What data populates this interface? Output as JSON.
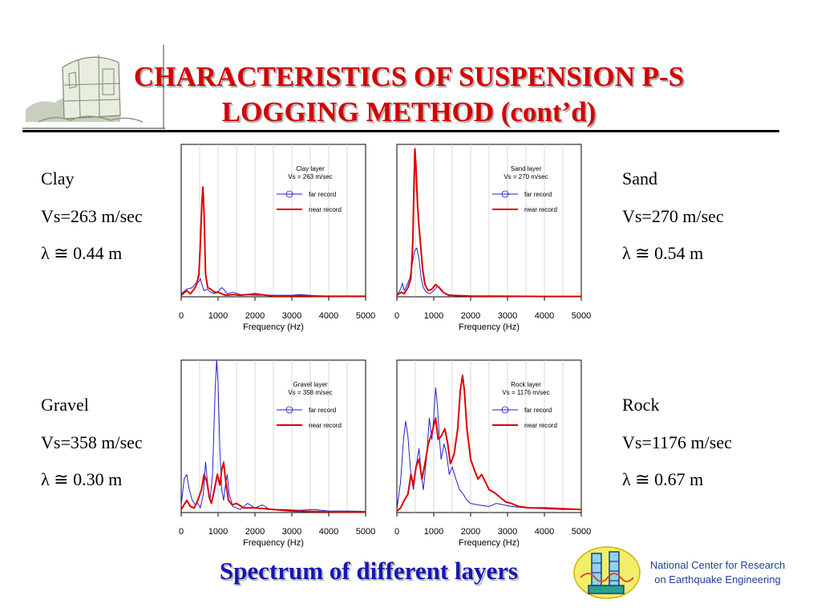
{
  "slide": {
    "title_line1": "CHARACTERISTICS OF SUSPENSION P-S",
    "title_line2": "LOGGING METHOD (cont’d)",
    "caption": "Spectrum of different layers",
    "org_line1": "National Center for Research",
    "org_line2": "on Earthquake Engineering",
    "title_color": "#d40000",
    "caption_color": "#1616b4"
  },
  "layers": [
    {
      "name": "Clay",
      "vs": "Vs=263 m/sec",
      "lambda": "λ ≅ 0.44 m"
    },
    {
      "name": "Sand",
      "vs": "Vs=270 m/sec",
      "lambda": "λ ≅ 0.54 m"
    },
    {
      "name": "Gravel",
      "vs": "Vs=358 m/sec",
      "lambda": "λ ≅ 0.30 m"
    },
    {
      "name": "Rock",
      "vs": "Vs=1176 m/sec",
      "lambda": "λ ≅ 0.67 m"
    }
  ],
  "chart_data": [
    {
      "type": "line",
      "legend_title_1": "Clay layer",
      "legend_title_2": "Vs = 263 m/sec",
      "xlabel": "Frequency (Hz)",
      "xticks": [
        "0",
        "1000",
        "2000",
        "3000",
        "4000",
        "5000"
      ],
      "xlim": [
        0,
        5000
      ],
      "ylim": [
        0,
        1
      ],
      "grid": true,
      "legend_position": "top-right",
      "series": [
        {
          "name": "far record",
          "color": "#2222cc",
          "points": [
            [
              0,
              0.02
            ],
            [
              150,
              0.05
            ],
            [
              300,
              0.06
            ],
            [
              400,
              0.09
            ],
            [
              480,
              0.1
            ],
            [
              520,
              0.12
            ],
            [
              560,
              0.08
            ],
            [
              620,
              0.04
            ],
            [
              700,
              0.05
            ],
            [
              800,
              0.03
            ],
            [
              900,
              0.02
            ],
            [
              1000,
              0.03
            ],
            [
              1050,
              0.05
            ],
            [
              1100,
              0.06
            ],
            [
              1150,
              0.05
            ],
            [
              1250,
              0.02
            ],
            [
              1400,
              0.03
            ],
            [
              1600,
              0.015
            ],
            [
              2000,
              0.01
            ],
            [
              2500,
              0.01
            ],
            [
              3000,
              0.01
            ],
            [
              3200,
              0.015
            ],
            [
              3600,
              0.008
            ],
            [
              4000,
              0.005
            ],
            [
              4500,
              0.003
            ],
            [
              5000,
              0.003
            ]
          ]
        },
        {
          "name": "near record",
          "color": "#dd0000",
          "points": [
            [
              0,
              0.01
            ],
            [
              150,
              0.04
            ],
            [
              250,
              0.02
            ],
            [
              350,
              0.05
            ],
            [
              420,
              0.08
            ],
            [
              480,
              0.15
            ],
            [
              520,
              0.35
            ],
            [
              560,
              0.62
            ],
            [
              590,
              0.72
            ],
            [
              620,
              0.55
            ],
            [
              660,
              0.15
            ],
            [
              720,
              0.06
            ],
            [
              800,
              0.05
            ],
            [
              900,
              0.03
            ],
            [
              1000,
              0.03
            ],
            [
              1200,
              0.01
            ],
            [
              1400,
              0.015
            ],
            [
              1600,
              0.01
            ],
            [
              1800,
              0.015
            ],
            [
              2000,
              0.02
            ],
            [
              2300,
              0.01
            ],
            [
              2600,
              0.005
            ],
            [
              3000,
              0.005
            ],
            [
              3200,
              0.008
            ],
            [
              3600,
              0.004
            ],
            [
              4000,
              0.003
            ],
            [
              5000,
              0.003
            ]
          ]
        }
      ]
    },
    {
      "type": "line",
      "legend_title_1": "Sand layer",
      "legend_title_2": "Vs = 270 m/sec",
      "xlabel": "Frequency (Hz)",
      "xticks": [
        "0",
        "1000",
        "2000",
        "3000",
        "4000",
        "5000"
      ],
      "xlim": [
        0,
        5000
      ],
      "ylim": [
        0,
        1
      ],
      "grid": true,
      "legend_position": "top-right",
      "series": [
        {
          "name": "far record",
          "color": "#2222cc",
          "points": [
            [
              0,
              0.01
            ],
            [
              100,
              0.05
            ],
            [
              150,
              0.09
            ],
            [
              200,
              0.04
            ],
            [
              280,
              0.08
            ],
            [
              350,
              0.12
            ],
            [
              420,
              0.22
            ],
            [
              480,
              0.3
            ],
            [
              540,
              0.32
            ],
            [
              600,
              0.25
            ],
            [
              660,
              0.12
            ],
            [
              720,
              0.06
            ],
            [
              800,
              0.03
            ],
            [
              900,
              0.02
            ],
            [
              1000,
              0.04
            ],
            [
              1100,
              0.07
            ],
            [
              1200,
              0.05
            ],
            [
              1300,
              0.02
            ],
            [
              1500,
              0.01
            ],
            [
              2000,
              0.005
            ],
            [
              3000,
              0.003
            ],
            [
              4000,
              0.002
            ],
            [
              5000,
              0.002
            ]
          ]
        },
        {
          "name": "near record",
          "color": "#dd0000",
          "points": [
            [
              0,
              0.01
            ],
            [
              120,
              0.03
            ],
            [
              200,
              0.02
            ],
            [
              300,
              0.06
            ],
            [
              380,
              0.12
            ],
            [
              430,
              0.35
            ],
            [
              460,
              0.7
            ],
            [
              490,
              0.97
            ],
            [
              520,
              0.85
            ],
            [
              560,
              0.6
            ],
            [
              600,
              0.46
            ],
            [
              650,
              0.32
            ],
            [
              700,
              0.18
            ],
            [
              760,
              0.08
            ],
            [
              850,
              0.04
            ],
            [
              950,
              0.05
            ],
            [
              1050,
              0.08
            ],
            [
              1150,
              0.06
            ],
            [
              1250,
              0.03
            ],
            [
              1400,
              0.01
            ],
            [
              2000,
              0.005
            ],
            [
              3000,
              0.003
            ],
            [
              4000,
              0.002
            ],
            [
              5000,
              0.002
            ]
          ]
        }
      ]
    },
    {
      "type": "line",
      "legend_title_1": "Gravel layer",
      "legend_title_2": "Vs = 358 m/sec",
      "xlabel": "Frequency (Hz)",
      "xticks": [
        "0",
        "1000",
        "2000",
        "3000",
        "4000",
        "5000"
      ],
      "xlim": [
        0,
        5000
      ],
      "ylim": [
        0,
        1
      ],
      "grid": true,
      "legend_position": "top-right",
      "series": [
        {
          "name": "far record",
          "color": "#2222cc",
          "points": [
            [
              0,
              0.05
            ],
            [
              80,
              0.22
            ],
            [
              150,
              0.25
            ],
            [
              220,
              0.15
            ],
            [
              300,
              0.08
            ],
            [
              380,
              0.05
            ],
            [
              450,
              0.06
            ],
            [
              520,
              0.03
            ],
            [
              600,
              0.12
            ],
            [
              660,
              0.33
            ],
            [
              720,
              0.18
            ],
            [
              780,
              0.08
            ],
            [
              850,
              0.25
            ],
            [
              920,
              0.8
            ],
            [
              960,
              1.0
            ],
            [
              1000,
              0.85
            ],
            [
              1050,
              0.4
            ],
            [
              1100,
              0.15
            ],
            [
              1150,
              0.08
            ],
            [
              1200,
              0.18
            ],
            [
              1250,
              0.25
            ],
            [
              1300,
              0.12
            ],
            [
              1400,
              0.04
            ],
            [
              1600,
              0.02
            ],
            [
              1800,
              0.06
            ],
            [
              2000,
              0.03
            ],
            [
              2200,
              0.05
            ],
            [
              2400,
              0.02
            ],
            [
              2800,
              0.02
            ],
            [
              3200,
              0.015
            ],
            [
              3600,
              0.02
            ],
            [
              4000,
              0.01
            ],
            [
              4500,
              0.01
            ],
            [
              5000,
              0.008
            ]
          ]
        },
        {
          "name": "near record",
          "color": "#dd0000",
          "points": [
            [
              0,
              0.02
            ],
            [
              150,
              0.08
            ],
            [
              250,
              0.04
            ],
            [
              350,
              0.03
            ],
            [
              450,
              0.08
            ],
            [
              550,
              0.15
            ],
            [
              620,
              0.25
            ],
            [
              700,
              0.2
            ],
            [
              760,
              0.1
            ],
            [
              820,
              0.06
            ],
            [
              900,
              0.15
            ],
            [
              980,
              0.25
            ],
            [
              1050,
              0.18
            ],
            [
              1100,
              0.28
            ],
            [
              1150,
              0.33
            ],
            [
              1200,
              0.22
            ],
            [
              1280,
              0.08
            ],
            [
              1380,
              0.05
            ],
            [
              1500,
              0.06
            ],
            [
              1700,
              0.03
            ],
            [
              2000,
              0.03
            ],
            [
              2500,
              0.02
            ],
            [
              3000,
              0.01
            ],
            [
              4000,
              0.005
            ],
            [
              5000,
              0.004
            ]
          ]
        }
      ]
    },
    {
      "type": "line",
      "legend_title_1": "Rock layer",
      "legend_title_2": "Vs = 1176 m/sec",
      "xlabel": "Frequency (Hz)",
      "xticks": [
        "0",
        "1000",
        "2000",
        "3000",
        "4000",
        "5000"
      ],
      "xlim": [
        0,
        5000
      ],
      "ylim": [
        0,
        1
      ],
      "grid": true,
      "legend_position": "top-right",
      "series": [
        {
          "name": "far record",
          "color": "#2222cc",
          "points": [
            [
              0,
              0.02
            ],
            [
              100,
              0.2
            ],
            [
              180,
              0.48
            ],
            [
              240,
              0.6
            ],
            [
              300,
              0.5
            ],
            [
              380,
              0.25
            ],
            [
              450,
              0.15
            ],
            [
              520,
              0.3
            ],
            [
              600,
              0.42
            ],
            [
              660,
              0.25
            ],
            [
              720,
              0.15
            ],
            [
              800,
              0.35
            ],
            [
              880,
              0.62
            ],
            [
              950,
              0.48
            ],
            [
              1000,
              0.62
            ],
            [
              1050,
              0.82
            ],
            [
              1100,
              0.7
            ],
            [
              1150,
              0.5
            ],
            [
              1200,
              0.35
            ],
            [
              1280,
              0.45
            ],
            [
              1350,
              0.38
            ],
            [
              1420,
              0.25
            ],
            [
              1500,
              0.3
            ],
            [
              1600,
              0.22
            ],
            [
              1700,
              0.15
            ],
            [
              1800,
              0.12
            ],
            [
              1900,
              0.08
            ],
            [
              2000,
              0.06
            ],
            [
              2200,
              0.05
            ],
            [
              2500,
              0.04
            ],
            [
              2700,
              0.06
            ],
            [
              2900,
              0.05
            ],
            [
              3100,
              0.04
            ],
            [
              3500,
              0.03
            ],
            [
              4000,
              0.025
            ],
            [
              4500,
              0.02
            ],
            [
              5000,
              0.02
            ]
          ]
        },
        {
          "name": "near record",
          "color": "#dd0000",
          "points": [
            [
              0,
              0.01
            ],
            [
              100,
              0.03
            ],
            [
              200,
              0.08
            ],
            [
              300,
              0.12
            ],
            [
              380,
              0.25
            ],
            [
              450,
              0.18
            ],
            [
              520,
              0.3
            ],
            [
              600,
              0.35
            ],
            [
              680,
              0.22
            ],
            [
              760,
              0.32
            ],
            [
              850,
              0.45
            ],
            [
              950,
              0.52
            ],
            [
              1050,
              0.62
            ],
            [
              1120,
              0.48
            ],
            [
              1200,
              0.5
            ],
            [
              1300,
              0.55
            ],
            [
              1380,
              0.45
            ],
            [
              1450,
              0.32
            ],
            [
              1550,
              0.38
            ],
            [
              1650,
              0.55
            ],
            [
              1720,
              0.8
            ],
            [
              1780,
              0.9
            ],
            [
              1830,
              0.8
            ],
            [
              1900,
              0.55
            ],
            [
              2000,
              0.35
            ],
            [
              2100,
              0.28
            ],
            [
              2200,
              0.22
            ],
            [
              2300,
              0.25
            ],
            [
              2400,
              0.2
            ],
            [
              2500,
              0.15
            ],
            [
              2650,
              0.13
            ],
            [
              2800,
              0.1
            ],
            [
              2950,
              0.07
            ],
            [
              3100,
              0.06
            ],
            [
              3300,
              0.04
            ],
            [
              3600,
              0.03
            ],
            [
              4000,
              0.03
            ],
            [
              4500,
              0.025
            ],
            [
              5000,
              0.02
            ]
          ]
        }
      ]
    }
  ]
}
